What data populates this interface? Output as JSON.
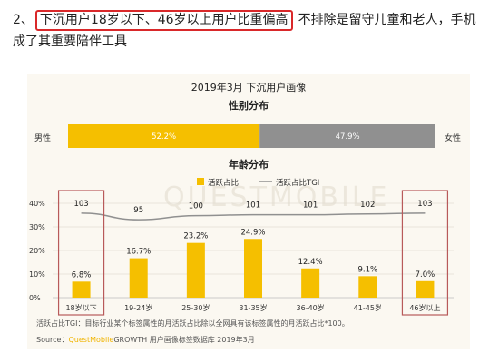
{
  "heading": {
    "number": "2、",
    "highlight": "下沉用户18岁以下、46岁以上用户比重偏高",
    "rest": "不排除是留守儿童和老人，手机成了其重要陪伴工具"
  },
  "colors": {
    "gold": "#f5bf00",
    "gray": "#909090",
    "highlight_box": "#d9282a",
    "bracket": "#b85a5a",
    "card_bg": "#fbf8f1"
  },
  "chart_data": [
    {
      "type": "bar",
      "orientation": "horizontal-stacked",
      "title": "2019年3月 下沉用户画像",
      "subtitle": "性别分布",
      "series": [
        {
          "name": "男性",
          "values": [
            52.2
          ],
          "label": "52.2%"
        },
        {
          "name": "女性",
          "values": [
            47.9
          ],
          "label": "47.9%"
        }
      ]
    },
    {
      "type": "bar",
      "title": "年龄分布",
      "categories": [
        "18岁以下",
        "19-24岁",
        "25-30岁",
        "31-35岁",
        "36-40岁",
        "41-45岁",
        "46岁以上"
      ],
      "series": [
        {
          "name": "活跃占比",
          "values": [
            6.8,
            16.7,
            23.2,
            24.9,
            12.4,
            9.1,
            7.0
          ],
          "labels": [
            "6.8%",
            "16.7%",
            "23.2%",
            "24.9%",
            "12.4%",
            "9.1%",
            "7.0%"
          ]
        },
        {
          "name": "活跃占比TGI",
          "type": "line",
          "values": [
            103,
            95,
            100,
            101,
            101,
            102,
            103
          ]
        }
      ],
      "yticks": [
        "0%",
        "10%",
        "20%",
        "30%",
        "40%"
      ],
      "ylim": [
        0,
        40
      ],
      "tgi_range": [
        0,
        115
      ],
      "highlighted_categories": [
        "18岁以下",
        "46岁以上"
      ]
    }
  ],
  "footnote": "活跃占比TGI：目标行业某个标签属性的月活跃占比除以全网具有该标签属性的月活跃占比*100。",
  "source": {
    "label": "Source：",
    "brand": "QuestMobile",
    "text": "GROWTH 用户画像标签数据库 2019年3月"
  },
  "watermark": "QUESTMOBILE"
}
